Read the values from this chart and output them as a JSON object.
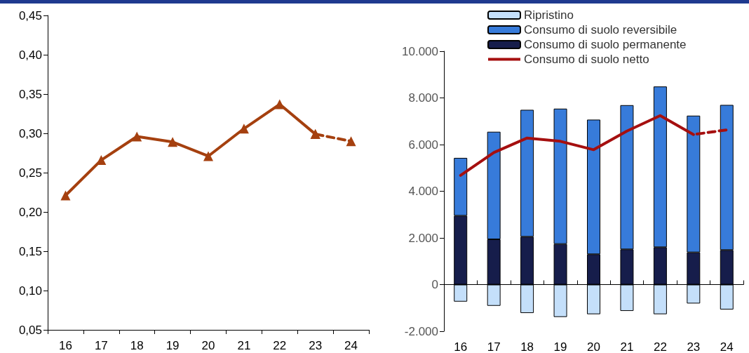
{
  "chart_data": [
    {
      "type": "line",
      "categories": [
        "16",
        "17",
        "18",
        "19",
        "20",
        "21",
        "22",
        "23",
        "24"
      ],
      "marker": "triangle",
      "series": [
        {
          "color": "#a5400f",
          "line_style": "solid",
          "values": [
            0.221,
            0.266,
            0.296,
            0.289,
            0.271,
            0.306,
            0.337,
            0.299,
            null
          ]
        },
        {
          "color": "#a5400f",
          "line_style": "dashed",
          "values": [
            null,
            null,
            null,
            null,
            null,
            null,
            null,
            0.299,
            0.29
          ]
        }
      ],
      "ylim": [
        0.05,
        0.45
      ],
      "yticks": [
        {
          "value": 0.05,
          "label": "0,05"
        },
        {
          "value": 0.1,
          "label": "0,10"
        },
        {
          "value": 0.15,
          "label": "0,15"
        },
        {
          "value": 0.2,
          "label": "0,20"
        },
        {
          "value": 0.25,
          "label": "0,25"
        },
        {
          "value": 0.3,
          "label": "0,30"
        },
        {
          "value": 0.35,
          "label": "0,35"
        },
        {
          "value": 0.4,
          "label": "0,40"
        },
        {
          "value": 0.45,
          "label": "0,45"
        }
      ]
    },
    {
      "type": "bar",
      "stacked": true,
      "categories": [
        "16",
        "17",
        "18",
        "19",
        "20",
        "21",
        "22",
        "23",
        "24"
      ],
      "legend": "top",
      "marker": "none",
      "series": [
        {
          "name": "Consumo di suolo permanente",
          "color": "#161d4b",
          "values": [
            2950,
            1940,
            2050,
            1740,
            1300,
            1510,
            1600,
            1380,
            1480
          ]
        },
        {
          "name": "Consumo di suolo reversibile",
          "color": "#377bda",
          "values": [
            2480,
            4610,
            5440,
            5800,
            5770,
            6180,
            6890,
            5860,
            6220
          ]
        },
        {
          "name": "Ripristino",
          "color": "#c4dffa",
          "values": [
            -730,
            -910,
            -1220,
            -1390,
            -1270,
            -1130,
            -1270,
            -810,
            -1070
          ]
        },
        {
          "name": "Consumo di suolo netto",
          "type": "line",
          "color": "#a50f0f",
          "line_style": "solid",
          "values": [
            4680,
            5660,
            6280,
            6140,
            5780,
            6580,
            7240,
            6430,
            null
          ]
        },
        {
          "type": "line",
          "color": "#a50f0f",
          "line_style": "dashed",
          "values": [
            null,
            null,
            null,
            null,
            null,
            null,
            null,
            6430,
            6630
          ]
        }
      ],
      "ylim": [
        -2000,
        10000
      ],
      "yticks": [
        {
          "value": -2000,
          "label": "-2.000"
        },
        {
          "value": 0,
          "label": "0"
        },
        {
          "value": 2000,
          "label": "2.000"
        },
        {
          "value": 4000,
          "label": "4.000"
        },
        {
          "value": 6000,
          "label": "6.000"
        },
        {
          "value": 8000,
          "label": "8.000"
        },
        {
          "value": 10000,
          "label": "10.000"
        }
      ]
    }
  ]
}
